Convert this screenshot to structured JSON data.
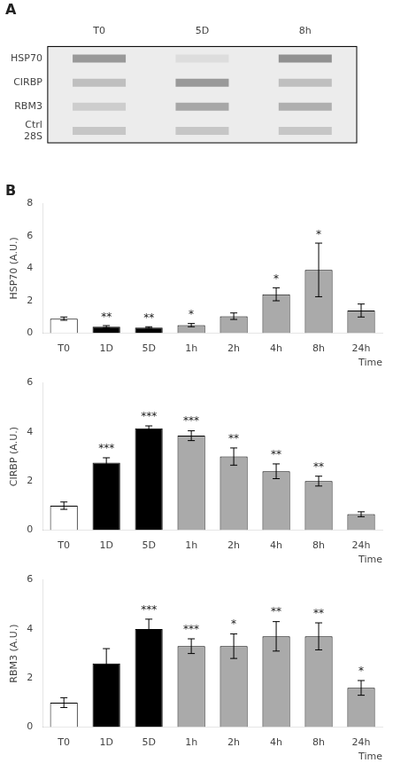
{
  "chart_data": [
    {
      "type": "heatmap",
      "title": "A",
      "x": [
        "T0",
        "5D",
        "8h"
      ],
      "y": [
        "HSP70",
        "CIRBP",
        "RBM3",
        "Ctrl\n28S"
      ],
      "values": [
        [
          0.55,
          0.1,
          0.6
        ],
        [
          0.3,
          0.55,
          0.3
        ],
        [
          0.2,
          0.45,
          0.4
        ],
        [
          0.25,
          0.25,
          0.25
        ]
      ]
    },
    {
      "type": "bar",
      "title": "B",
      "categories": [
        "T0",
        "1D",
        "5D",
        "1h",
        "2h",
        "4h",
        "8h",
        "24h"
      ],
      "values": [
        0.9,
        0.4,
        0.35,
        0.5,
        1.05,
        2.4,
        3.9,
        1.4
      ],
      "errors": [
        0.1,
        0.07,
        0.05,
        0.1,
        0.2,
        0.4,
        1.65,
        0.4
      ],
      "annotations": [
        null,
        "**",
        "**",
        "*",
        null,
        "*",
        "*",
        null
      ],
      "colors": [
        "white",
        "black",
        "black",
        "#aaaaaa",
        "#aaaaaa",
        "#aaaaaa",
        "#aaaaaa",
        "#aaaaaa"
      ],
      "xlabel": "Time",
      "ylabel": "HSP70 (A.U.)",
      "ylim": [
        0,
        8
      ],
      "yticks": [
        0,
        2,
        4,
        6,
        8
      ],
      "grid": false
    },
    {
      "type": "bar",
      "categories": [
        "T0",
        "1D",
        "5D",
        "1h",
        "2h",
        "4h",
        "8h",
        "24h"
      ],
      "values": [
        1.0,
        2.75,
        4.15,
        3.85,
        3.0,
        2.4,
        2.0,
        0.65
      ],
      "errors": [
        0.15,
        0.2,
        0.1,
        0.2,
        0.35,
        0.3,
        0.2,
        0.1
      ],
      "annotations": [
        null,
        "***",
        "***",
        "***",
        "**",
        "**",
        "**",
        null
      ],
      "colors": [
        "white",
        "black",
        "black",
        "#aaaaaa",
        "#aaaaaa",
        "#aaaaaa",
        "#aaaaaa",
        "#aaaaaa"
      ],
      "xlabel": "Time",
      "ylabel": "CIRBP (A.U.)",
      "ylim": [
        0,
        6
      ],
      "yticks": [
        0,
        2,
        4,
        6
      ],
      "grid": false
    },
    {
      "type": "bar",
      "categories": [
        "T0",
        "1D",
        "5D",
        "1h",
        "2h",
        "4h",
        "8h",
        "24h"
      ],
      "values": [
        1.0,
        2.6,
        4.0,
        3.3,
        3.3,
        3.7,
        3.7,
        1.6
      ],
      "errors": [
        0.2,
        0.6,
        0.4,
        0.3,
        0.5,
        0.6,
        0.55,
        0.3
      ],
      "annotations": [
        null,
        null,
        "***",
        "***",
        "*",
        "**",
        "**",
        "*"
      ],
      "colors": [
        "white",
        "black",
        "black",
        "#aaaaaa",
        "#aaaaaa",
        "#aaaaaa",
        "#aaaaaa",
        "#aaaaaa"
      ],
      "xlabel": "Time",
      "ylabel": "RBM3 (A.U.)",
      "ylim": [
        0,
        6
      ],
      "yticks": [
        0,
        2,
        4,
        6
      ],
      "grid": false
    }
  ]
}
